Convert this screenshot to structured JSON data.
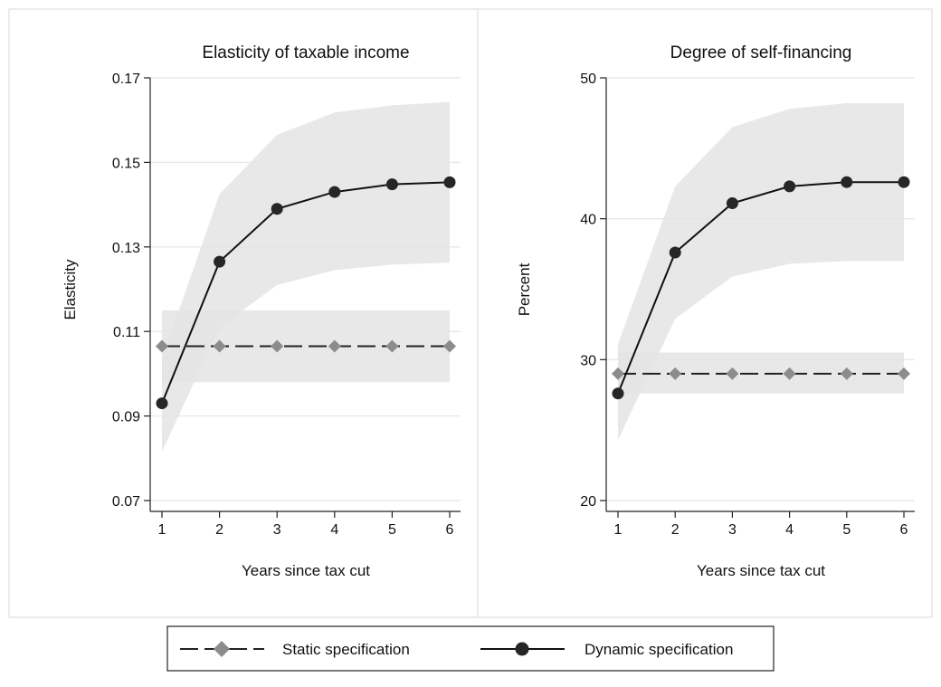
{
  "chart_data": [
    {
      "type": "line",
      "title": "Elasticity of taxable income",
      "xlabel": "Years since tax cut",
      "ylabel": "Elasticity",
      "x": [
        1,
        2,
        3,
        4,
        5,
        6
      ],
      "xticks": [
        "1",
        "2",
        "3",
        "4",
        "5",
        "6"
      ],
      "yticks": [
        "0.07",
        "0.09",
        "0.11",
        "0.13",
        "0.15",
        "0.17"
      ],
      "ylim": [
        0.07,
        0.17
      ],
      "grid": true,
      "series": [
        {
          "name": "Static specification",
          "values": [
            0.1065,
            0.1065,
            0.1065,
            0.1065,
            0.1065,
            0.1065
          ],
          "ci_lower": [
            0.098,
            0.098,
            0.098,
            0.098,
            0.098,
            0.098
          ],
          "ci_upper": [
            0.115,
            0.115,
            0.115,
            0.115,
            0.115,
            0.115
          ]
        },
        {
          "name": "Dynamic specification",
          "values": [
            0.093,
            0.1265,
            0.139,
            0.143,
            0.1448,
            0.1453
          ],
          "ci_lower": [
            0.0815,
            0.111,
            0.121,
            0.1245,
            0.1258,
            0.1263
          ],
          "ci_upper": [
            0.1035,
            0.1425,
            0.1565,
            0.1618,
            0.1635,
            0.1643
          ]
        }
      ]
    },
    {
      "type": "line",
      "title": "Degree of self-financing",
      "xlabel": "Years since tax cut",
      "ylabel": "Percent",
      "x": [
        1,
        2,
        3,
        4,
        5,
        6
      ],
      "xticks": [
        "1",
        "2",
        "3",
        "4",
        "5",
        "6"
      ],
      "yticks": [
        "20",
        "30",
        "40",
        "50"
      ],
      "ylim": [
        20,
        50
      ],
      "grid": true,
      "series": [
        {
          "name": "Static specification",
          "values": [
            29,
            29,
            29,
            29,
            29,
            29
          ],
          "ci_lower": [
            27.6,
            27.6,
            27.6,
            27.6,
            27.6,
            27.6
          ],
          "ci_upper": [
            30.5,
            30.5,
            30.5,
            30.5,
            30.5,
            30.5
          ]
        },
        {
          "name": "Dynamic specification",
          "values": [
            27.6,
            37.6,
            41.1,
            42.3,
            42.6,
            42.6
          ],
          "ci_lower": [
            24.3,
            32.9,
            35.9,
            36.8,
            37.0,
            37.0
          ],
          "ci_upper": [
            31.1,
            42.3,
            46.5,
            47.8,
            48.2,
            48.2
          ]
        }
      ]
    }
  ],
  "legend": {
    "items": [
      {
        "label": "Static specification"
      },
      {
        "label": "Dynamic specification"
      }
    ]
  },
  "colors": {
    "band": "#e4e4e4",
    "grid": "#e8e8e8",
    "static_line": "#222222",
    "static_marker": "#8c8c8c",
    "dynamic_line": "#111111",
    "dynamic_marker": "#262626",
    "panel_border": "#d9d9d9"
  }
}
